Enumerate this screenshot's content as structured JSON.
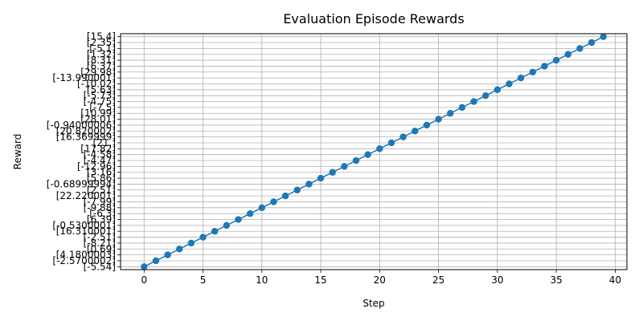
{
  "chart_data": {
    "type": "line",
    "title": "Evaluation Episode Rewards",
    "xlabel": "Step",
    "ylabel": "Reward",
    "xlim": [
      -2,
      41
    ],
    "x_ticks": [
      0,
      5,
      10,
      15,
      20,
      25,
      30,
      35,
      40
    ],
    "grid": true,
    "line_color": "#1f77b4",
    "marker": "circle",
    "x": [
      0,
      1,
      2,
      3,
      4,
      5,
      6,
      7,
      8,
      9,
      10,
      11,
      12,
      13,
      14,
      15,
      16,
      17,
      18,
      19,
      20,
      21,
      22,
      23,
      24,
      25,
      26,
      27,
      28,
      29,
      30,
      31,
      32,
      33,
      34,
      35,
      36,
      37,
      38,
      39
    ],
    "categories": [
      "[-5.54]",
      "[-2.5700002]",
      "[4.1800003]",
      "[0.69]",
      "[-8.21]",
      "[-2.51]",
      "[16.310001]",
      "[-0.5300001]",
      "[6.39]",
      "[-6.3]",
      "[-9.88]",
      "[-7.99]",
      "[22.220001]",
      "[2.51]",
      "[-0.68999994]",
      "[5.86]",
      "[3.16]",
      "[-12.96]",
      "[-4.47]",
      "[-4.58]",
      "[17.82]",
      "[21.]",
      "[16.369999]",
      "[20.820002]",
      "[-0.94000006]",
      "[28.01]",
      "[10.99]",
      "[-7.5]",
      "[-4.75]",
      "[-5.73]",
      "[5.63]",
      "[-10.02]",
      "[-13.990001]",
      "[29.98]",
      "[6.37]",
      "[8.31]",
      "[1.32]",
      "[-5.1]",
      "[2.35]",
      "[15.4]"
    ]
  }
}
